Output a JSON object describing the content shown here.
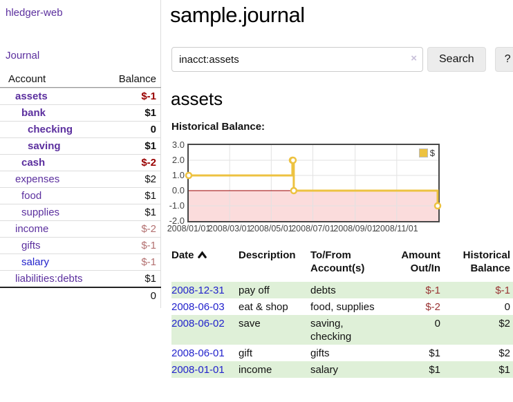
{
  "app": {
    "title": "hledger-web"
  },
  "sidebar": {
    "journal_link": "Journal",
    "headers": {
      "account": "Account",
      "balance": "Balance"
    },
    "accounts": [
      {
        "name": "assets",
        "indent": 1,
        "bold": true,
        "balance": "$-1",
        "balance_style": "strong-neg"
      },
      {
        "name": "bank",
        "indent": 2,
        "bold": true,
        "balance": "$1",
        "balance_style": "normal"
      },
      {
        "name": "checking",
        "indent": 3,
        "bold": true,
        "balance": "0",
        "balance_style": "normal"
      },
      {
        "name": "saving",
        "indent": 3,
        "bold": true,
        "balance": "$1",
        "balance_style": "normal"
      },
      {
        "name": "cash",
        "indent": 2,
        "bold": true,
        "balance": "$-2",
        "balance_style": "strong-neg"
      },
      {
        "name": "expenses",
        "indent": 1,
        "bold": false,
        "balance": "$2",
        "balance_style": "normal"
      },
      {
        "name": "food",
        "indent": 2,
        "bold": false,
        "balance": "$1",
        "balance_style": "normal"
      },
      {
        "name": "supplies",
        "indent": 2,
        "bold": false,
        "balance": "$1",
        "balance_style": "normal"
      },
      {
        "name": "income",
        "indent": 1,
        "bold": false,
        "balance": "$-2",
        "balance_style": "faded-neg"
      },
      {
        "name": "gifts",
        "indent": 2,
        "bold": false,
        "balance": "$-1",
        "balance_style": "faded-neg"
      },
      {
        "name": "salary",
        "indent": 2,
        "bold": false,
        "balance": "$-1",
        "balance_style": "faded-neg",
        "link_color": "blue"
      },
      {
        "name": "liabilities:debts",
        "indent": 1,
        "bold": false,
        "balance": "$1",
        "balance_style": "normal"
      }
    ],
    "total": "0"
  },
  "main": {
    "title": "sample.journal",
    "search": {
      "value": "inacct:assets",
      "clear_icon": "×",
      "button_label": "Search",
      "help_label": "?"
    },
    "account_heading": "assets",
    "chart_label": "Historical Balance:"
  },
  "chart_data": {
    "type": "line",
    "step": true,
    "title": "Historical Balance:",
    "series": [
      {
        "name": "$",
        "color": "#EDC240",
        "points": [
          {
            "date": "2008-01-01",
            "day": 0,
            "value": 1
          },
          {
            "date": "2008-06-01",
            "day": 152,
            "value": 2
          },
          {
            "date": "2008-06-02",
            "day": 153,
            "value": 2
          },
          {
            "date": "2008-06-03",
            "day": 154,
            "value": 0
          },
          {
            "date": "2008-12-31",
            "day": 365,
            "value": -1
          }
        ]
      }
    ],
    "xlim": [
      0,
      366
    ],
    "ylim": [
      -2,
      3
    ],
    "x_ticks": [
      {
        "day": 0,
        "label": "2008/01/01"
      },
      {
        "day": 60,
        "label": "2008/03/01"
      },
      {
        "day": 121,
        "label": "2008/05/01"
      },
      {
        "day": 182,
        "label": "2008/07/01"
      },
      {
        "day": 244,
        "label": "2008/09/01"
      },
      {
        "day": 305,
        "label": "2008/11/01"
      }
    ],
    "y_ticks": [
      "3.0",
      "2.0",
      "1.0",
      "0.0",
      "-1.0",
      "-2.0"
    ],
    "grid": true,
    "grid_color": "#e2e2e2",
    "zero_line_color": "#990000",
    "negative_region_color": "#fbdcdc",
    "legend": {
      "label": "$",
      "position": "top-right"
    }
  },
  "register": {
    "headers": {
      "date": "Date",
      "sort_icon": "chevron-up",
      "description": "Description",
      "accounts_l1": "To/From",
      "accounts_l2": "Account(s)",
      "amount_l1": "Amount",
      "amount_l2": "Out/In",
      "balance_l1": "Historical",
      "balance_l2": "Balance"
    },
    "rows": [
      {
        "date": "2008-12-31",
        "description": "pay off",
        "accounts": "debts",
        "amount": "$-1",
        "amount_negative": true,
        "balance": "$-1",
        "balance_negative": true
      },
      {
        "date": "2008-06-03",
        "description": "eat & shop",
        "accounts": "food, supplies",
        "amount": "$-2",
        "amount_negative": true,
        "balance": "0",
        "balance_negative": false
      },
      {
        "date": "2008-06-02",
        "description": "save",
        "accounts": "saving, checking",
        "amount": "0",
        "amount_negative": false,
        "balance": "$2",
        "balance_negative": false
      },
      {
        "date": "2008-06-01",
        "description": "gift",
        "accounts": "gifts",
        "amount": "$1",
        "amount_negative": false,
        "balance": "$2",
        "balance_negative": false
      },
      {
        "date": "2008-01-01",
        "description": "income",
        "accounts": "salary",
        "amount": "$1",
        "amount_negative": false,
        "balance": "$1",
        "balance_negative": false
      }
    ]
  }
}
